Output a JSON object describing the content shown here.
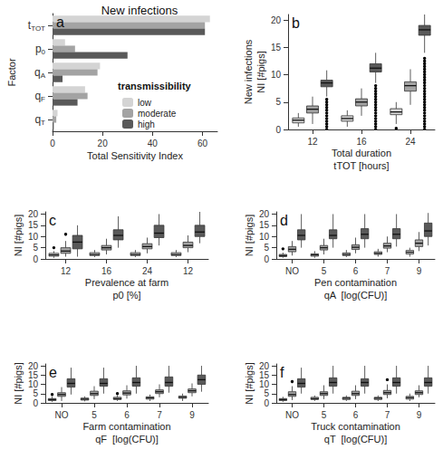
{
  "chart_data": [
    {
      "type": "bar",
      "panel_label": "a",
      "title": "New infections",
      "orientation": "horizontal",
      "xlabel": "Total Sensitivity Index",
      "ylabel": "Factor",
      "categories": [
        "tTOT",
        "p0",
        "qA",
        "qF",
        "qT"
      ],
      "legend_title": "transmissibility",
      "legend": "lower right",
      "series": [
        {
          "name": "low",
          "color": "#d4d4d4",
          "values": [
            63,
            5,
            19,
            13,
            2
          ]
        },
        {
          "name": "moderate",
          "color": "#a3a3a3",
          "values": [
            61,
            9,
            18,
            14,
            1.5
          ]
        },
        {
          "name": "high",
          "color": "#595959",
          "values": [
            61,
            30,
            4,
            10,
            0.5
          ]
        }
      ],
      "xlim": [
        0,
        66
      ],
      "xticks": [
        0,
        20,
        40,
        60
      ],
      "grid": false
    },
    {
      "type": "boxplot",
      "panel_label": "b",
      "xlabel": [
        "Total duration",
        "tTOT [hours]"
      ],
      "ylabel": [
        "New infections",
        "NI [#pigs]"
      ],
      "categories": [
        "12",
        "16",
        "24"
      ],
      "series": [
        {
          "name": "low",
          "color": "#d4d4d4",
          "values": [
            [
              0.5,
              1.2,
              1.7,
              2.1,
              3.0
            ],
            [
              0.5,
              1.5,
              2,
              2.5,
              3.5
            ],
            [
              1,
              2.7,
              3.2,
              3.8,
              5
            ]
          ],
          "outliers": [
            [],
            [],
            [
              0.2
            ]
          ]
        },
        {
          "name": "moderate",
          "color": "#a3a3a3",
          "values": [
            [
              1,
              3,
              3.7,
              4.3,
              6
            ],
            [
              2.5,
              4.3,
              5,
              5.6,
              7.5
            ],
            [
              4.5,
              7,
              8,
              8.7,
              11
            ]
          ],
          "outliers": [
            [],
            [],
            []
          ]
        },
        {
          "name": "high",
          "color": "#595959",
          "values": [
            [
              6,
              7.8,
              8.5,
              9,
              10.8
            ],
            [
              8.5,
              10.5,
              11.2,
              12,
              14
            ],
            [
              14,
              17.2,
              18.2,
              19,
              21
            ]
          ],
          "outliers": [
            [
              0,
              0.5,
              1,
              1.5,
              2,
              2.5,
              3,
              3.5,
              4,
              4.5,
              5,
              5.5
            ],
            [
              0,
              0.5,
              1,
              1.5,
              2,
              2.5,
              3,
              3.5,
              4,
              4.5,
              5,
              5.5,
              6,
              6.5,
              7,
              7.5,
              8
            ],
            [
              0,
              0.5,
              1,
              1.5,
              2,
              2.5,
              3,
              3.5,
              4,
              4.5,
              5,
              5.5,
              6,
              6.5,
              7,
              7.5,
              8,
              8.5,
              9,
              9.5,
              10,
              10.5,
              11,
              11.5,
              12,
              12.5,
              13
            ]
          ]
        }
      ],
      "ylim": [
        0,
        21
      ],
      "yticks": [
        0,
        5,
        10,
        15,
        20
      ],
      "grid": false
    },
    {
      "type": "boxplot",
      "panel_label": "c",
      "xlabel": [
        "Prevalence at farm",
        "p0 [%]"
      ],
      "ylabel": "NI [#pigs]",
      "categories": [
        "12",
        "16",
        "24",
        "12"
      ],
      "series": [
        {
          "name": "low",
          "color": "#d4d4d4",
          "values": [
            [
              0.5,
              1.2,
              1.8,
              2.5,
              3.5
            ],
            [
              0.8,
              1.5,
              2,
              2.8,
              4
            ],
            [
              0.8,
              1.5,
              2,
              2.8,
              4
            ],
            [
              0.8,
              1.5,
              2,
              2.8,
              4
            ]
          ],
          "outliers": [
            [
              5
            ],
            [],
            [],
            []
          ]
        },
        {
          "name": "moderate",
          "color": "#a3a3a3",
          "values": [
            [
              1,
              2.5,
              3.5,
              5,
              8
            ],
            [
              2,
              4,
              5,
              6,
              9
            ],
            [
              2.5,
              4.5,
              5.5,
              6.8,
              9.5
            ],
            [
              3,
              5,
              6,
              7.5,
              10.5
            ]
          ],
          "outliers": [
            [
              11
            ],
            [],
            [],
            []
          ]
        },
        {
          "name": "high",
          "color": "#595959",
          "values": [
            [
              1,
              4.5,
              7.5,
              10.5,
              15
            ],
            [
              5,
              8.5,
              10.5,
              13,
              19
            ],
            [
              6,
              9.5,
              11.5,
              15,
              20
            ],
            [
              7,
              10,
              12,
              15,
              21
            ]
          ],
          "outliers": [
            [],
            [],
            [],
            []
          ]
        }
      ],
      "ylim": [
        0,
        21
      ],
      "yticks": [
        0,
        5,
        10,
        15,
        20
      ],
      "grid": false
    },
    {
      "type": "boxplot",
      "panel_label": "d",
      "xlabel": [
        "Pen contamination",
        "qA  [log(CFU)]"
      ],
      "ylabel": "NI [#pigs]",
      "categories": [
        "NO",
        "5",
        "6",
        "7",
        "9"
      ],
      "series": [
        {
          "name": "low",
          "color": "#d4d4d4",
          "values": [
            [
              0.5,
              1,
              1.5,
              2,
              2.8
            ],
            [
              0.5,
              1.2,
              1.8,
              2.3,
              3.5
            ],
            [
              0.8,
              1.5,
              2,
              2.7,
              4
            ],
            [
              1,
              2,
              2.5,
              3.2,
              4.5
            ],
            [
              1,
              2.2,
              3,
              3.8,
              5
            ]
          ],
          "outliers": [
            [
              4.5
            ],
            [],
            [],
            [],
            []
          ]
        },
        {
          "name": "moderate",
          "color": "#a3a3a3",
          "values": [
            [
              1.5,
              3.2,
              4.3,
              5.5,
              8
            ],
            [
              2,
              4,
              5,
              6,
              9
            ],
            [
              2.5,
              4.2,
              5.2,
              6.3,
              9.5
            ],
            [
              3,
              4.8,
              5.8,
              7,
              10
            ],
            [
              3.5,
              5.5,
              7,
              8.5,
              12
            ]
          ],
          "outliers": [
            [],
            [],
            [],
            [],
            []
          ]
        },
        {
          "name": "high",
          "color": "#595959",
          "values": [
            [
              5,
              8.5,
              10.5,
              13,
              20
            ],
            [
              5,
              9,
              10.5,
              13,
              20
            ],
            [
              5,
              9,
              11,
              13.5,
              20
            ],
            [
              5.5,
              9,
              11,
              13.5,
              20
            ],
            [
              6,
              10,
              12.5,
              16,
              20.5
            ]
          ],
          "outliers": [
            [],
            [],
            [],
            [],
            []
          ]
        }
      ],
      "ylim": [
        0,
        21
      ],
      "yticks": [
        0,
        5,
        10,
        15,
        20
      ],
      "grid": false
    },
    {
      "type": "boxplot",
      "panel_label": "e",
      "xlabel": [
        "Farm contamination",
        "qF  [log(CFU)]"
      ],
      "ylabel": "NI [#pigs]",
      "categories": [
        "NO",
        "5",
        "6",
        "7",
        "9"
      ],
      "series": [
        {
          "name": "low",
          "color": "#d4d4d4",
          "values": [
            [
              0.5,
              1.2,
              1.8,
              2.3,
              3.3
            ],
            [
              0.8,
              1.5,
              2,
              2.6,
              3.5
            ],
            [
              1,
              1.8,
              2.3,
              3,
              4
            ],
            [
              1,
              2,
              2.7,
              3.3,
              4.5
            ],
            [
              1,
              2.5,
              3,
              3.7,
              5
            ]
          ],
          "outliers": [
            [
              4.5
            ],
            [],
            [
              5
            ],
            [],
            []
          ]
        },
        {
          "name": "moderate",
          "color": "#a3a3a3",
          "values": [
            [
              1,
              3.5,
              4.5,
              5.5,
              8.5
            ],
            [
              2,
              4,
              5,
              6.3,
              9
            ],
            [
              2.3,
              4.3,
              5.3,
              6.5,
              9.5
            ],
            [
              3,
              5,
              6,
              7,
              10
            ],
            [
              3.5,
              5.5,
              6.5,
              7.5,
              10.5
            ]
          ],
          "outliers": [
            [],
            [],
            [],
            [],
            []
          ]
        },
        {
          "name": "high",
          "color": "#595959",
          "values": [
            [
              4.5,
              8.5,
              10.5,
              13,
              19
            ],
            [
              5,
              9,
              10.5,
              13,
              19
            ],
            [
              5,
              9,
              11,
              13.5,
              20
            ],
            [
              5.5,
              9,
              11,
              14,
              20
            ],
            [
              6,
              10,
              12.5,
              15,
              20
            ]
          ],
          "outliers": [
            [],
            [],
            [],
            [],
            []
          ]
        }
      ],
      "ylim": [
        0,
        21
      ],
      "yticks": [
        0,
        5,
        10,
        15,
        20
      ],
      "grid": false
    },
    {
      "type": "boxplot",
      "panel_label": "f",
      "xlabel": [
        "Truck contamination",
        "qT  [log(CFU)]"
      ],
      "ylabel": "NI [#pigs]",
      "categories": [
        "NO",
        "5",
        "6",
        "7",
        "9"
      ],
      "series": [
        {
          "name": "low",
          "color": "#d4d4d4",
          "values": [
            [
              0.5,
              1.2,
              1.8,
              2.3,
              3.3
            ],
            [
              1,
              1.8,
              2.3,
              3,
              4
            ],
            [
              1,
              1.8,
              2.5,
              3,
              4
            ],
            [
              1,
              1.8,
              2.5,
              3,
              4
            ],
            [
              1,
              2,
              2.8,
              3.5,
              5
            ]
          ],
          "outliers": [
            [],
            [],
            [],
            [],
            []
          ]
        },
        {
          "name": "moderate",
          "color": "#a3a3a3",
          "values": [
            [
              1.5,
              3.5,
              4.5,
              6,
              9
            ],
            [
              2,
              4,
              5,
              6,
              9.5
            ],
            [
              2,
              4,
              5,
              6.3,
              9.5
            ],
            [
              2.5,
              4.5,
              5.5,
              6.7,
              10
            ],
            [
              3,
              4.5,
              5.5,
              6.5,
              9.5
            ]
          ],
          "outliers": [
            [
              11.5
            ],
            [],
            [],
            [
              12.5
            ],
            []
          ]
        },
        {
          "name": "high",
          "color": "#595959",
          "values": [
            [
              5,
              8.5,
              10.5,
              13,
              19
            ],
            [
              5,
              9,
              11,
              13.5,
              20
            ],
            [
              5,
              9,
              11,
              13,
              20
            ],
            [
              5,
              9,
              11,
              13.5,
              20
            ],
            [
              5,
              9,
              11,
              13.5,
              20
            ]
          ],
          "outliers": [
            [],
            [],
            [],
            [],
            []
          ]
        }
      ],
      "ylim": [
        0,
        21
      ],
      "yticks": [
        0,
        5,
        10,
        15,
        20
      ],
      "grid": false
    }
  ]
}
